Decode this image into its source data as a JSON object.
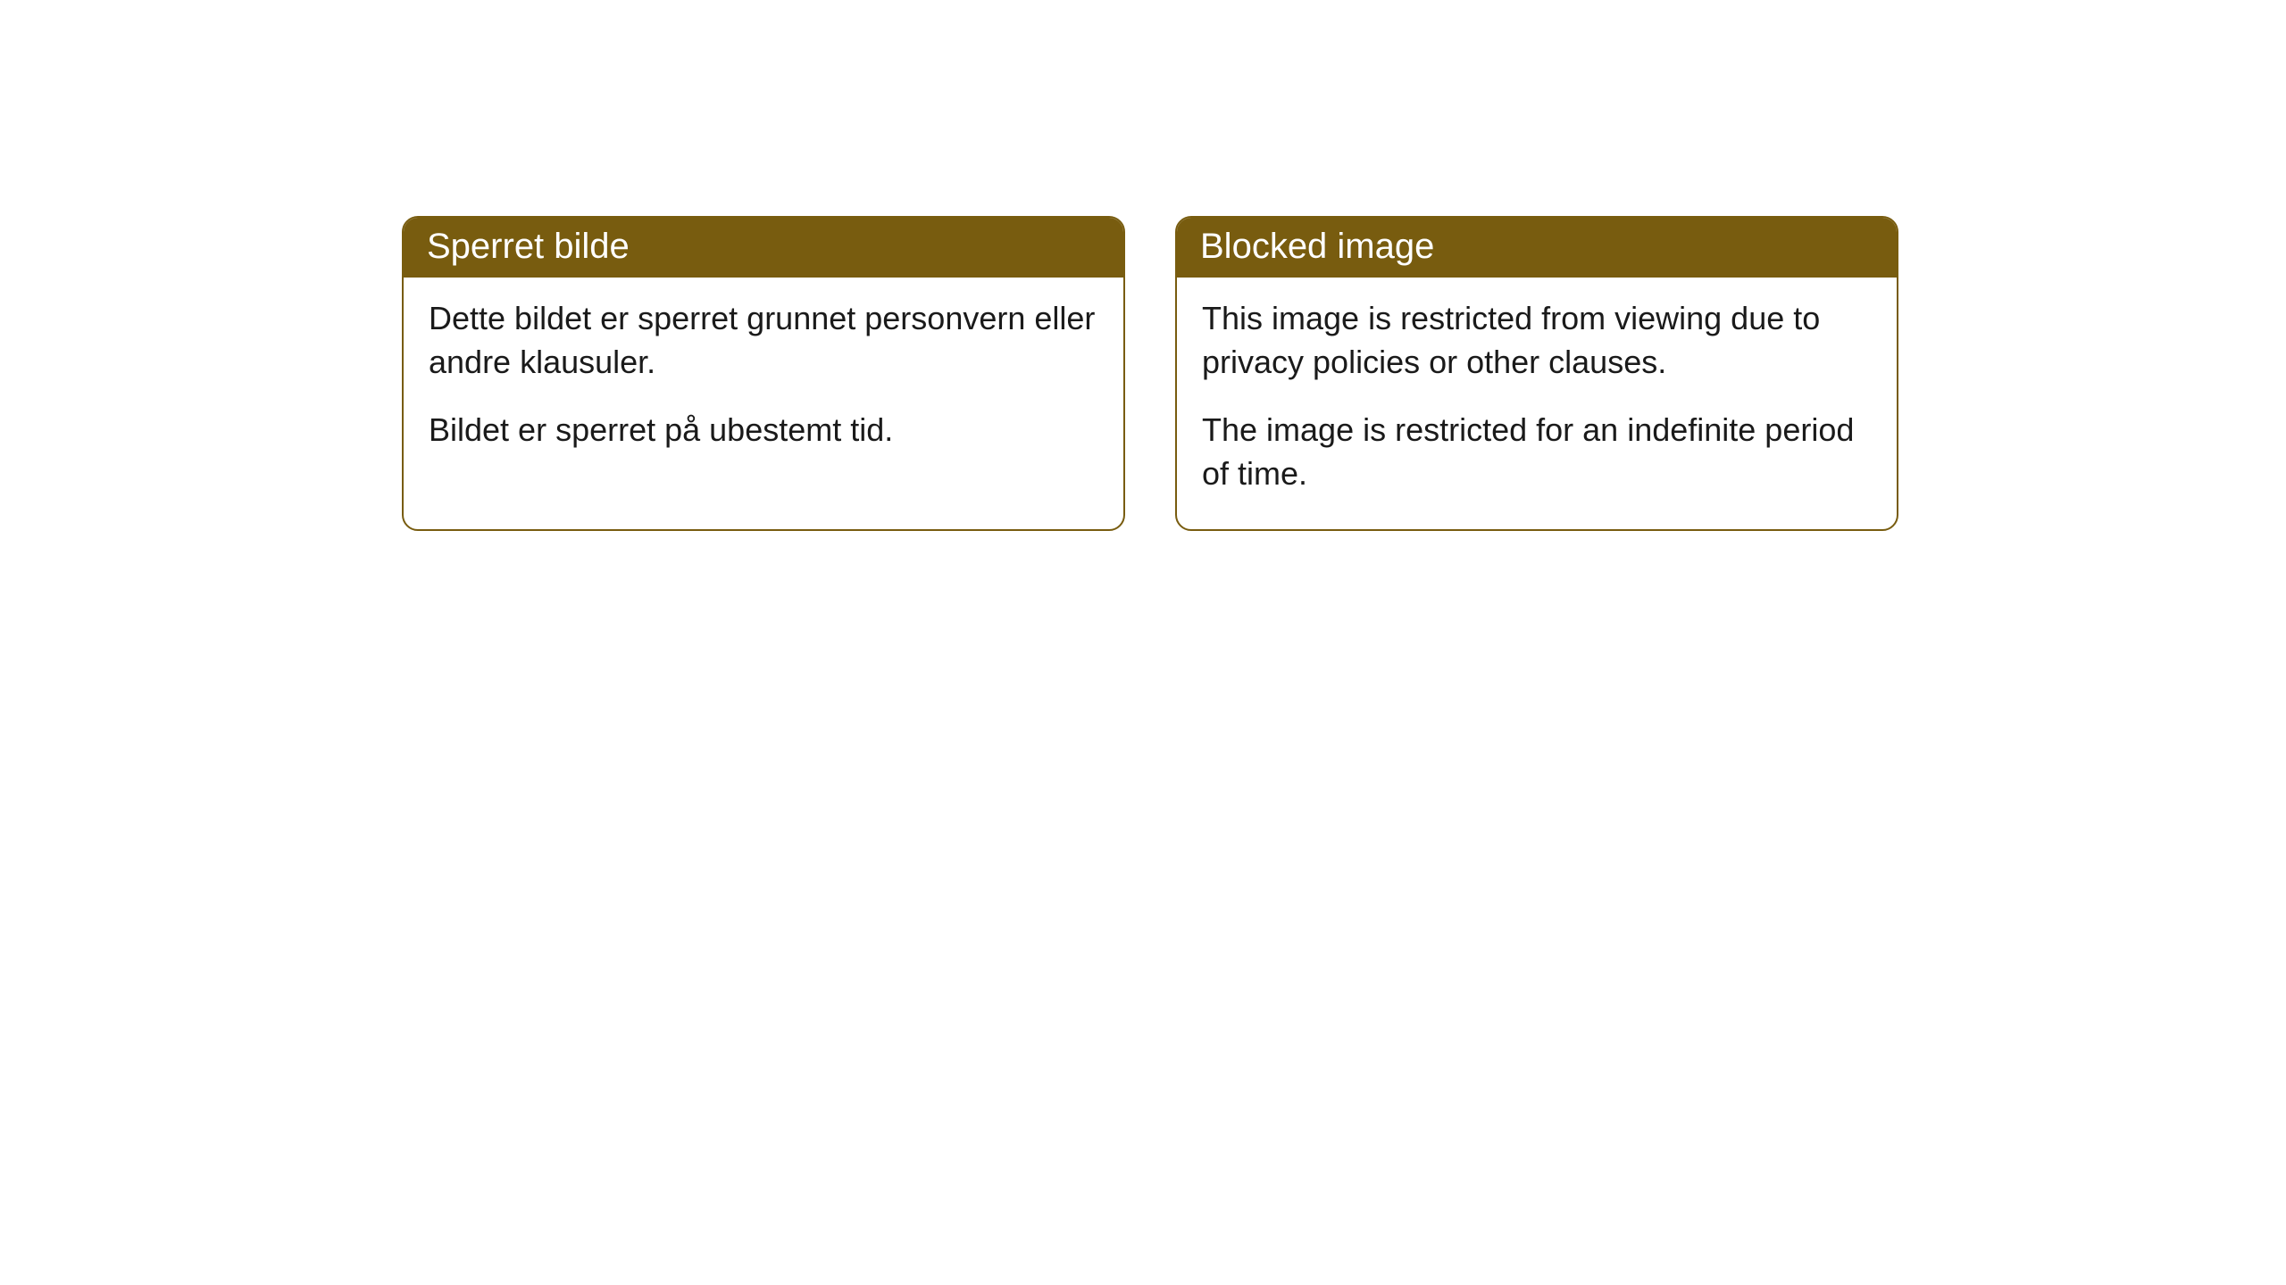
{
  "cards": [
    {
      "title": "Sperret bilde",
      "paragraph1": "Dette bildet er sperret grunnet personvern eller andre klausuler.",
      "paragraph2": "Bildet er sperret på ubestemt tid."
    },
    {
      "title": "Blocked image",
      "paragraph1": "This image is restricted from viewing due to privacy policies or other clauses.",
      "paragraph2": "The image is restricted for an indefinite period of time."
    }
  ],
  "styling": {
    "header_bg_color": "#785c0f",
    "header_text_color": "#ffffff",
    "border_color": "#785c0f",
    "body_text_color": "#1a1a1a",
    "card_bg_color": "#ffffff",
    "page_bg_color": "#ffffff",
    "border_radius": 18,
    "header_fontsize": 40,
    "body_fontsize": 36
  }
}
